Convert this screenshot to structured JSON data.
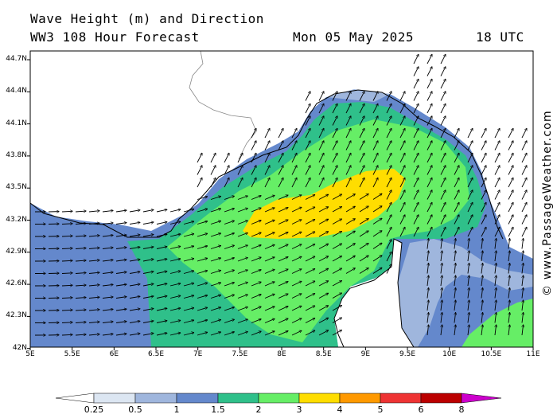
{
  "header": {
    "title_line1": "Wave Height (m) and Direction",
    "title_line2": "WW3 108 Hour Forecast",
    "date": "Mon 05 May 2025",
    "time": "18 UTC"
  },
  "credit": "© www.PassageWeather.com",
  "axes": {
    "lat_labels": [
      "44.7N",
      "44.4N",
      "44.1N",
      "43.8N",
      "43.5N",
      "43.2N",
      "42.9N",
      "42.6N",
      "42.3N",
      "42N"
    ],
    "lon_labels": [
      "5E",
      "5.5E",
      "6E",
      "6.5E",
      "7E",
      "7.5E",
      "8E",
      "8.5E",
      "9E",
      "9.5E",
      "10E",
      "10.5E",
      "11E"
    ]
  },
  "legend": {
    "labels": [
      "0.25",
      "0.5",
      "1",
      "1.5",
      "2",
      "3",
      "4",
      "5",
      "6",
      "8"
    ],
    "colors": [
      "#ffffff",
      "#dce6f2",
      "#9fb6dd",
      "#6488cc",
      "#2fc08a",
      "#66ee66",
      "#ffdd00",
      "#ff9900",
      "#ee3333",
      "#bb0000",
      "#cc00cc"
    ]
  },
  "map": {
    "land_color": "#ffffff",
    "coast_color": "#000000",
    "arrow_color": "#000000"
  }
}
